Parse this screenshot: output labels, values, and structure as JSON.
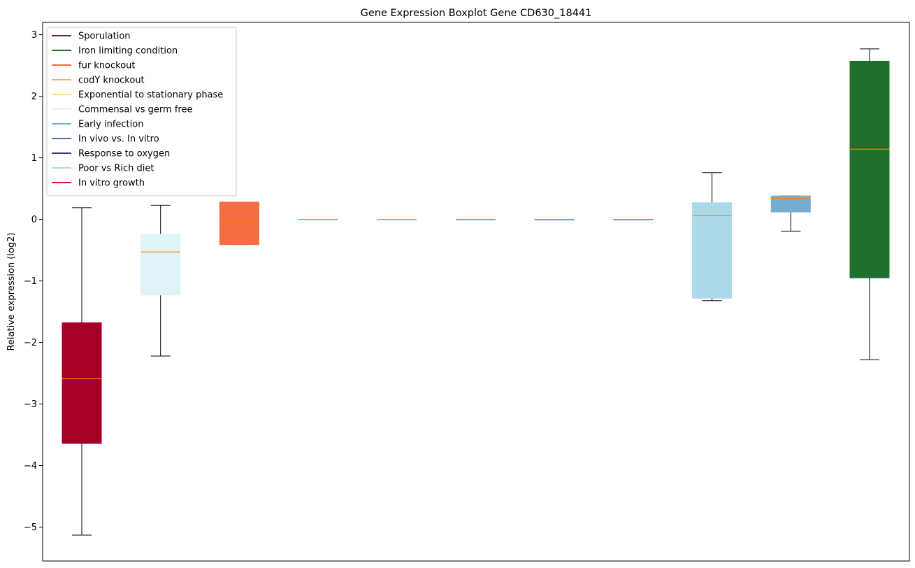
{
  "chart_data": {
    "type": "boxplot",
    "title": "Gene Expression Boxplot Gene CD630_18441",
    "xlabel": "",
    "ylabel": "Relative expression (log2)",
    "ylim": [
      -5.55,
      3.2
    ],
    "yticks": [
      -5,
      -4,
      -3,
      -2,
      -1,
      0,
      1,
      2,
      3
    ],
    "ytick_labels": [
      "−5",
      "−4",
      "−3",
      "−2",
      "−1",
      "0",
      "1",
      "2",
      "3"
    ],
    "grid": false,
    "legend_position": "upper-left",
    "median_color": "#ff7f0e",
    "legend": [
      {
        "label": "Sporulation",
        "color": "#a50026"
      },
      {
        "label": "Iron limiting condition",
        "color": "#1f6e2e"
      },
      {
        "label": "fur knockout",
        "color": "#f46d43"
      },
      {
        "label": "codY knockout",
        "color": "#fdae61"
      },
      {
        "label": "Exponential to stationary phase",
        "color": "#fee090"
      },
      {
        "label": "Commensal vs germ free",
        "color": "#e0f3f8"
      },
      {
        "label": "Early infection",
        "color": "#74add1"
      },
      {
        "label": "In vivo vs. In vitro",
        "color": "#4575b4"
      },
      {
        "label": "Response to oxygen",
        "color": "#313695"
      },
      {
        "label": "Poor vs Rich diet",
        "color": "#abd9e9"
      },
      {
        "label": "In vitro growth",
        "color": "#d7191c"
      }
    ],
    "boxes": [
      {
        "color": "#a50026",
        "whisker_low": -5.13,
        "q1": -3.64,
        "median": -2.59,
        "q3": -1.68,
        "whisker_high": 0.19
      },
      {
        "color": "#e0f3f8",
        "whisker_low": -2.22,
        "q1": -1.23,
        "median": -0.53,
        "q3": -0.24,
        "whisker_high": 0.23
      },
      {
        "color": "#f46d43",
        "whisker_low": -0.41,
        "q1": -0.41,
        "median": -0.04,
        "q3": 0.28,
        "whisker_high": 0.28
      },
      {
        "color": "#fdae61",
        "whisker_low": 0.0,
        "q1": 0.0,
        "median": 0.0,
        "q3": 0.0,
        "whisker_high": 0.0
      },
      {
        "color": "#fee090",
        "whisker_low": 0.0,
        "q1": 0.0,
        "median": 0.0,
        "q3": 0.0,
        "whisker_high": 0.0
      },
      {
        "color": "#4575b4",
        "whisker_low": 0.0,
        "q1": 0.0,
        "median": 0.0,
        "q3": 0.0,
        "whisker_high": 0.0
      },
      {
        "color": "#313695",
        "whisker_low": 0.0,
        "q1": 0.0,
        "median": 0.0,
        "q3": 0.0,
        "whisker_high": 0.0
      },
      {
        "color": "#d7191c",
        "whisker_low": 0.0,
        "q1": 0.0,
        "median": 0.0,
        "q3": 0.0,
        "whisker_high": 0.0
      },
      {
        "color": "#abd9e9",
        "whisker_low": -1.32,
        "q1": -1.28,
        "median": 0.06,
        "q3": 0.27,
        "whisker_high": 0.76
      },
      {
        "color": "#74add1",
        "whisker_low": -0.19,
        "q1": 0.12,
        "median": 0.34,
        "q3": 0.38,
        "whisker_high": 0.38
      },
      {
        "color": "#1f6e2e",
        "whisker_low": -2.28,
        "q1": -0.95,
        "median": 1.14,
        "q3": 2.57,
        "whisker_high": 2.77
      }
    ]
  }
}
